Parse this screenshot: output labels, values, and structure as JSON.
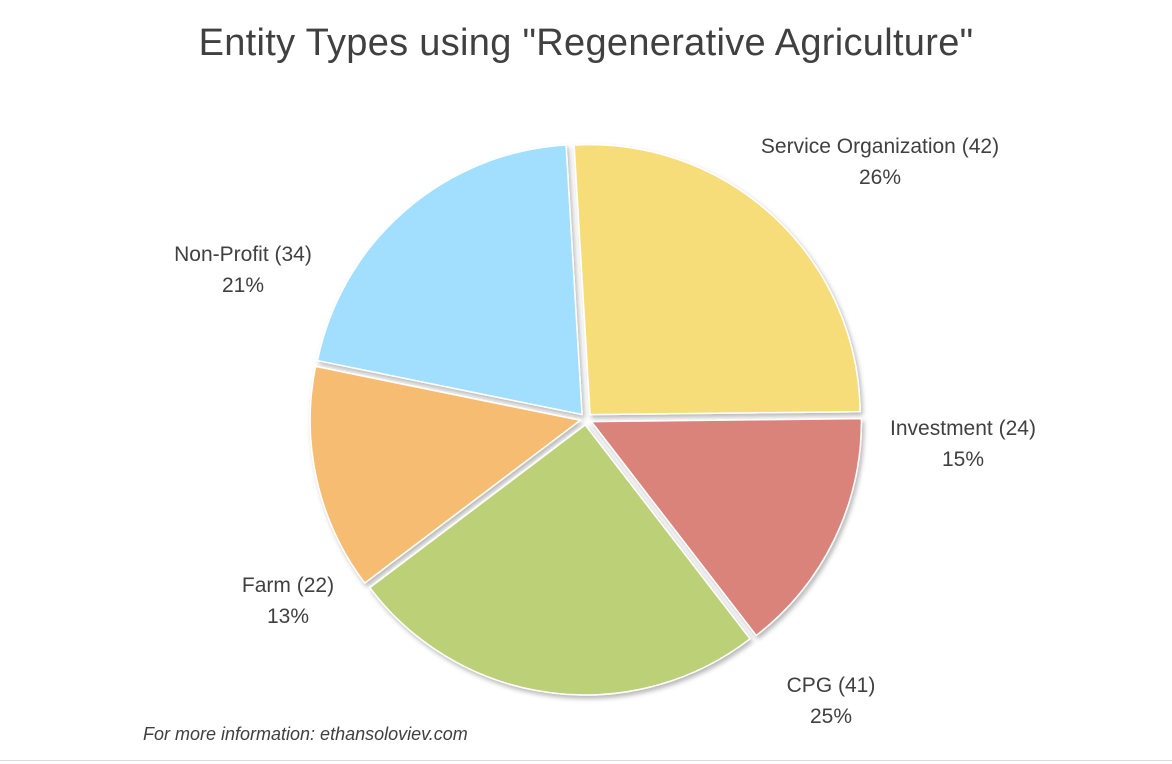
{
  "chart_data": {
    "type": "pie",
    "title": "Entity Types using \"Regenerative Agriculture\"",
    "slices": [
      {
        "label": "Service Organization",
        "count": "(42)",
        "value": 42,
        "percent": "26%",
        "color": "#f7dc7a"
      },
      {
        "label": "Investment",
        "count": "(24)",
        "value": 24,
        "percent": "15%",
        "color": "#d9837a"
      },
      {
        "label": "CPG",
        "count": "(41)",
        "value": 41,
        "percent": "25%",
        "color": "#bcd078"
      },
      {
        "label": "Farm",
        "count": "(22)",
        "value": 22,
        "percent": "13%",
        "color": "#f6bd72"
      },
      {
        "label": "Non-Profit",
        "count": "(34)",
        "value": 34,
        "percent": "21%",
        "color": "#a2dfff"
      }
    ]
  },
  "footnote": "For more information: ethansoloviev.com"
}
